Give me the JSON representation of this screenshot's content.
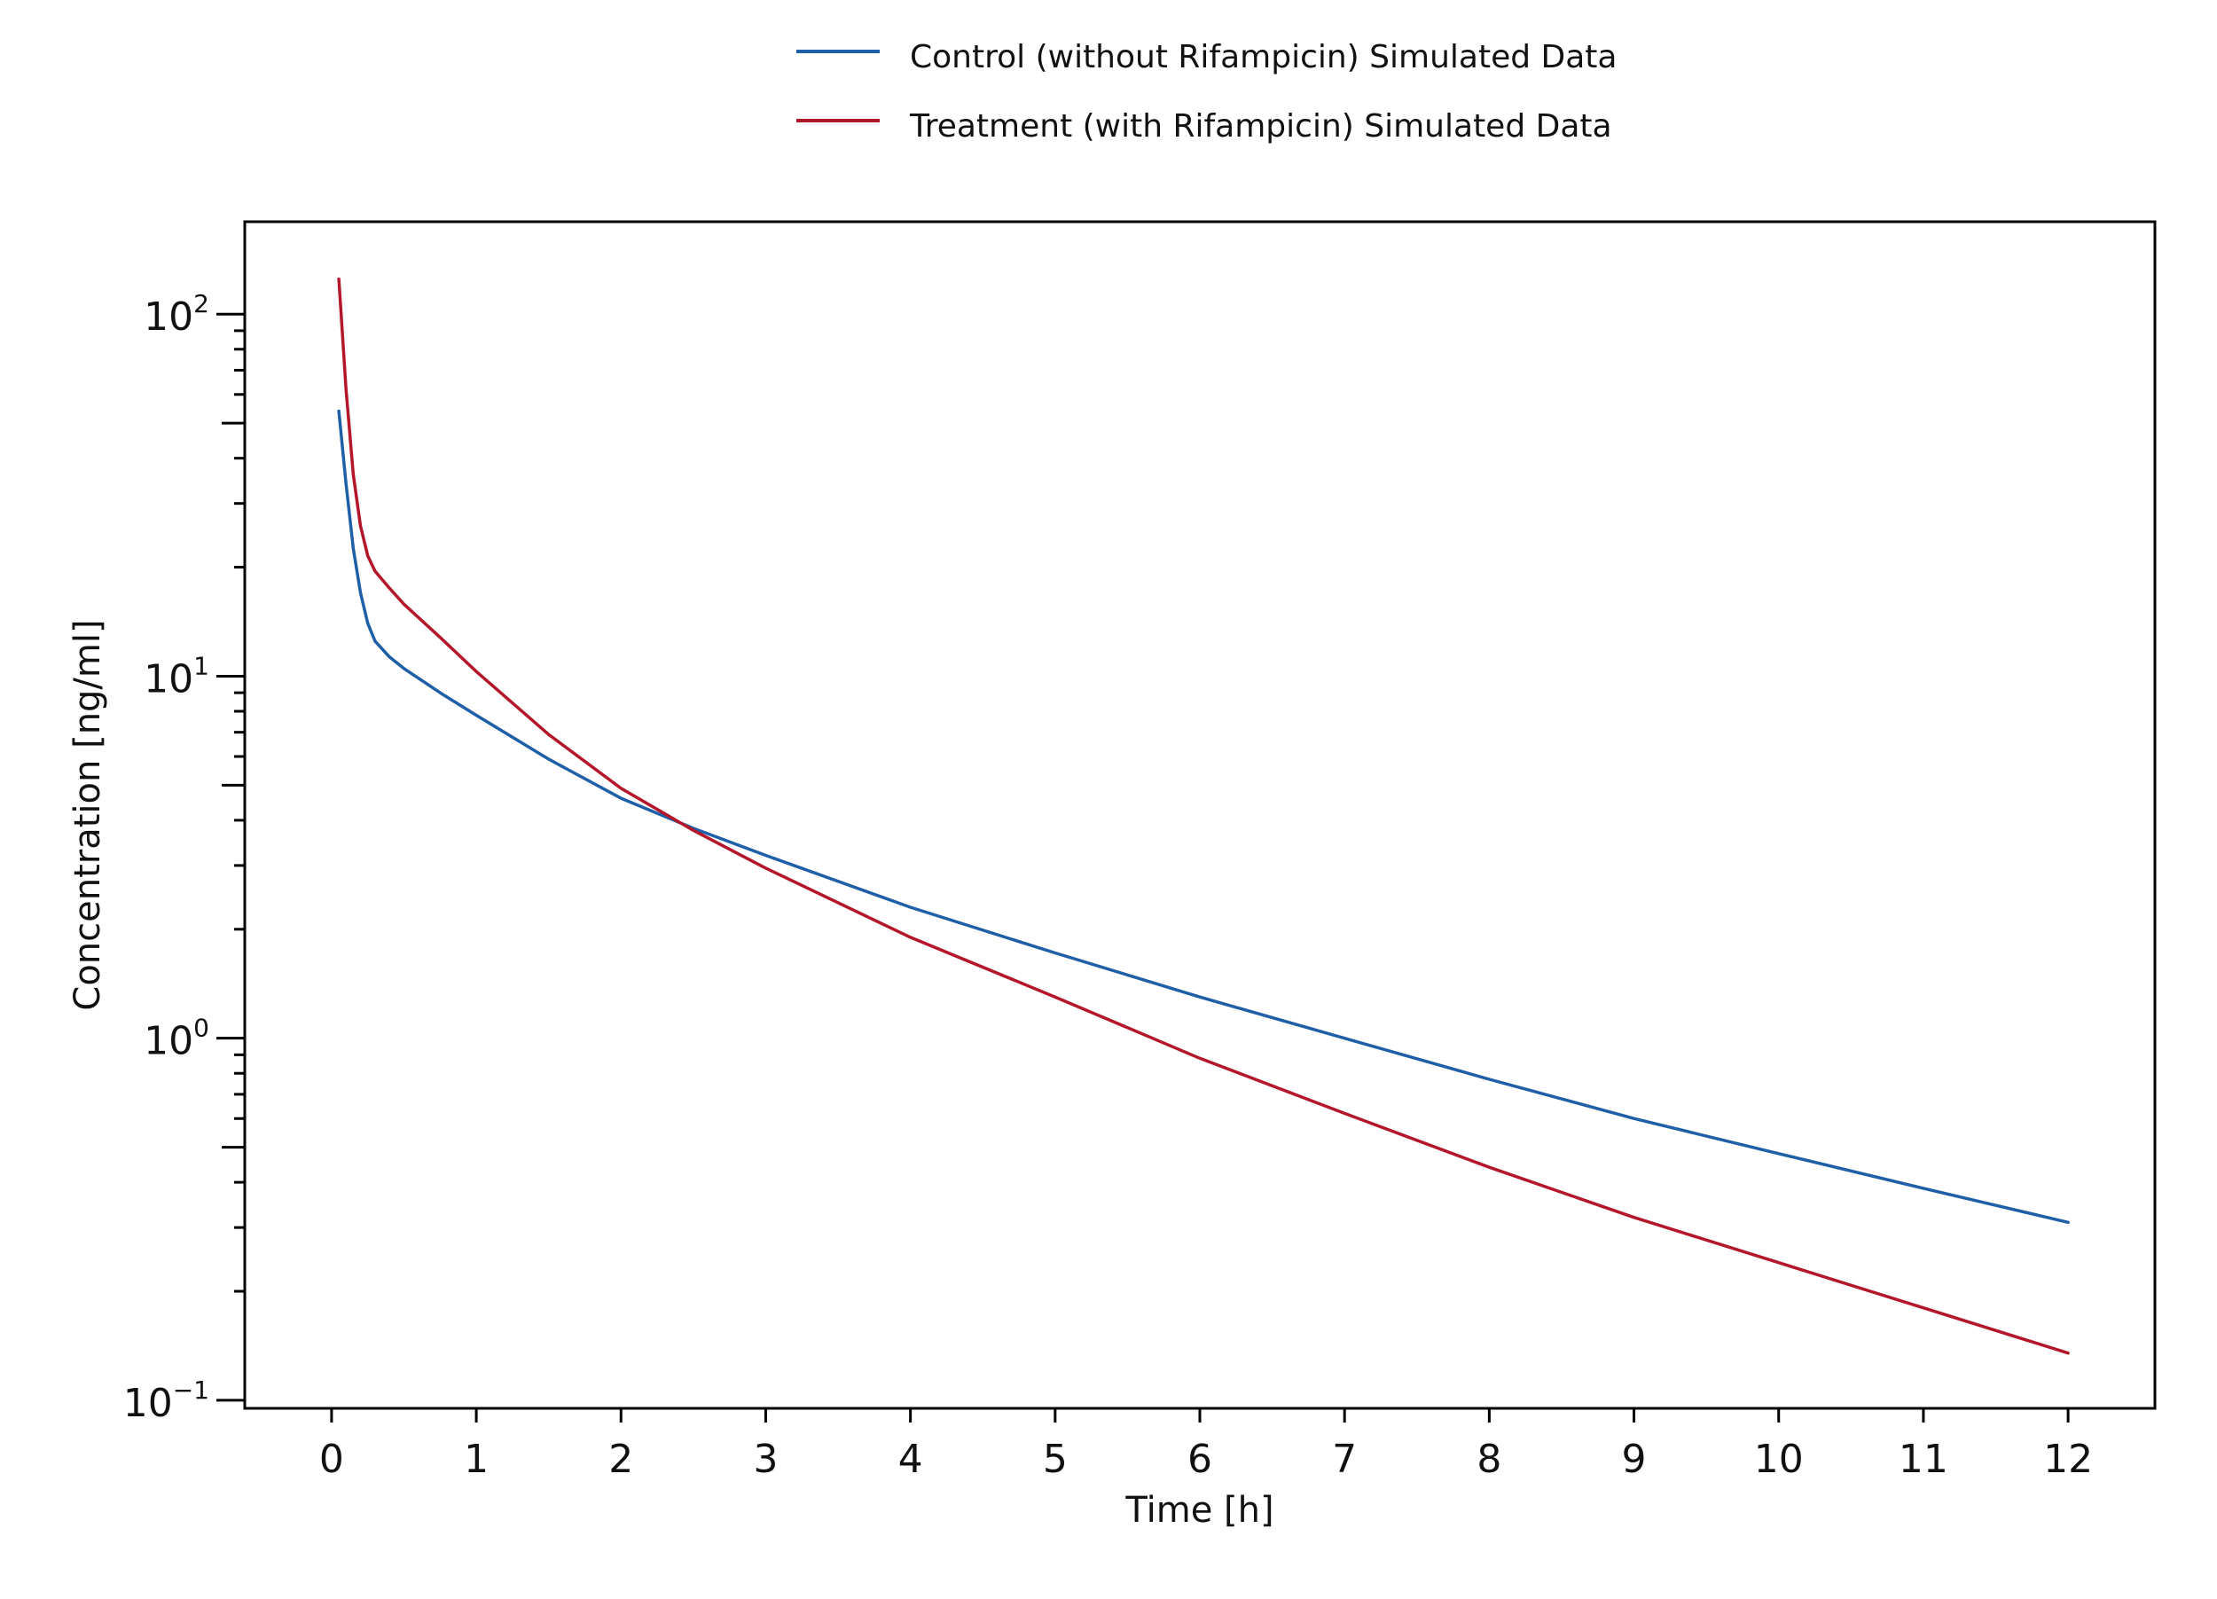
{
  "chart_data": {
    "type": "line",
    "title": "",
    "xlabel": "Time [h]",
    "ylabel": "Concentration [ng/ml]",
    "x_scale": "linear",
    "y_scale": "log",
    "xlim": [
      -0.6,
      12.6
    ],
    "ylim": [
      0.095,
      180
    ],
    "x_ticks": [
      0,
      1,
      2,
      3,
      4,
      5,
      6,
      7,
      8,
      9,
      10,
      11,
      12
    ],
    "x_tick_labels": [
      "0",
      "1",
      "2",
      "3",
      "4",
      "5",
      "6",
      "7",
      "8",
      "9",
      "10",
      "11",
      "12"
    ],
    "y_ticks": [
      0.1,
      1,
      10,
      100
    ],
    "y_tick_labels": [
      {
        "base": "10",
        "exp": "−1"
      },
      {
        "base": "10",
        "exp": "0"
      },
      {
        "base": "10",
        "exp": "1"
      },
      {
        "base": "10",
        "exp": "2"
      }
    ],
    "grid": false,
    "legend_position": "top-center",
    "series": [
      {
        "name": "Control (without Rifampicin) Simulated Data",
        "color": "#1f5fa8",
        "x": [
          0.05,
          0.1,
          0.15,
          0.2,
          0.25,
          0.3,
          0.4,
          0.5,
          0.75,
          1,
          1.5,
          2,
          2.5,
          3,
          4,
          5,
          6,
          7,
          8,
          9,
          10,
          11,
          12
        ],
        "y": [
          54,
          34,
          22.5,
          17,
          14,
          12.5,
          11.3,
          10.5,
          9.0,
          7.8,
          5.9,
          4.6,
          3.8,
          3.2,
          2.3,
          1.72,
          1.3,
          1.0,
          0.77,
          0.6,
          0.48,
          0.385,
          0.31
        ]
      },
      {
        "name": "Treatment (with Rifampicin) Simulated Data",
        "color": "#b5172a",
        "x": [
          0.05,
          0.1,
          0.15,
          0.2,
          0.25,
          0.3,
          0.4,
          0.5,
          0.75,
          1,
          1.5,
          2,
          2.5,
          3,
          4,
          5,
          6,
          7,
          8,
          9,
          10,
          11,
          12
        ],
        "y": [
          125,
          62,
          36,
          26,
          21.5,
          19.5,
          17.5,
          15.8,
          12.8,
          10.3,
          6.9,
          4.9,
          3.75,
          2.95,
          1.9,
          1.3,
          0.88,
          0.62,
          0.44,
          0.32,
          0.24,
          0.18,
          0.135
        ]
      }
    ]
  }
}
